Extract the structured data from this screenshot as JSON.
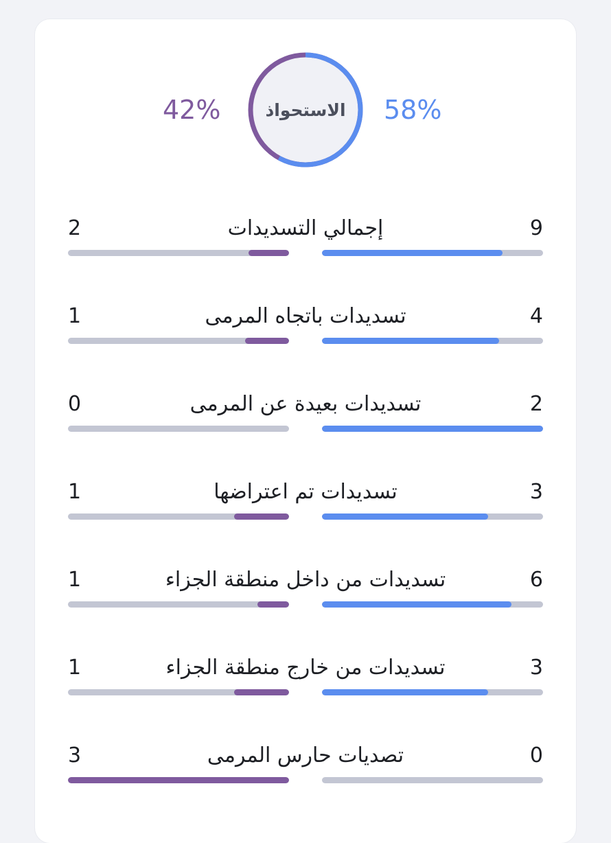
{
  "colors": {
    "home": "#5b8def",
    "away": "#7f5a9e",
    "track": "#c3c6d3",
    "donut_center": "#f0f1f6"
  },
  "possession": {
    "label": "الاستحواذ",
    "home_pct": 58,
    "away_pct": 42,
    "home_text": "58%",
    "away_text": "42%"
  },
  "stats": [
    {
      "label": "إجمالي التسديدات",
      "home": 9,
      "away": 2
    },
    {
      "label": "تسديدات باتجاه المرمى",
      "home": 4,
      "away": 1
    },
    {
      "label": "تسديدات بعيدة عن المرمى",
      "home": 2,
      "away": 0
    },
    {
      "label": "تسديدات تم اعتراضها",
      "home": 3,
      "away": 1
    },
    {
      "label": "تسديدات من داخل منطقة الجزاء",
      "home": 6,
      "away": 1
    },
    {
      "label": "تسديدات من خارج منطقة الجزاء",
      "home": 3,
      "away": 1
    },
    {
      "label": "تصديات حارس المرمى",
      "home": 0,
      "away": 3
    }
  ]
}
